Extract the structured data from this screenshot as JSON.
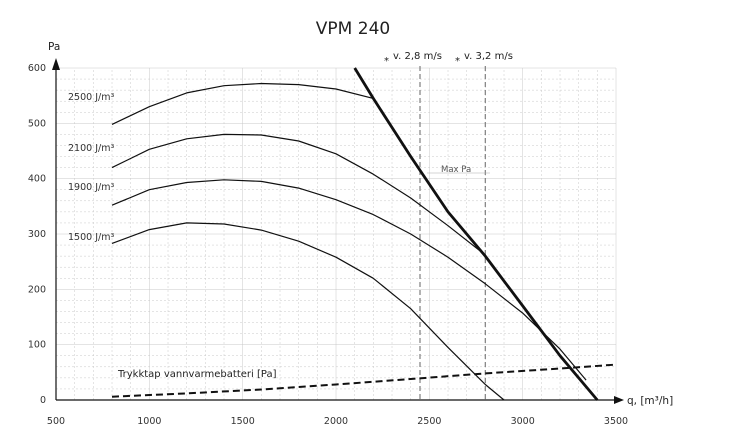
{
  "chart_data": {
    "type": "line",
    "title": "VPM 240",
    "ylabel": "Pa",
    "xlabel": "q, [m³/h]",
    "xlim": [
      500,
      3500
    ],
    "ylim": [
      0,
      600
    ],
    "x_ticks": [
      500,
      1000,
      1500,
      2000,
      2500,
      3000,
      3500
    ],
    "y_ticks": [
      0,
      100,
      200,
      300,
      400,
      500,
      600
    ],
    "grid": true,
    "series": [
      {
        "name": "2500 J/m³",
        "style": "solid",
        "x": [
          800,
          1000,
          1200,
          1400,
          1600,
          1800,
          2000,
          2200
        ],
        "y": [
          498,
          530,
          555,
          568,
          572,
          570,
          562,
          545
        ]
      },
      {
        "name": "2100 J/m³",
        "style": "solid",
        "x": [
          800,
          1000,
          1200,
          1400,
          1600,
          1800,
          2000,
          2200,
          2400,
          2600,
          2800
        ],
        "y": [
          420,
          453,
          472,
          480,
          479,
          468,
          445,
          408,
          365,
          315,
          262
        ]
      },
      {
        "name": "1900 J/m³",
        "style": "solid",
        "x": [
          800,
          1000,
          1200,
          1400,
          1600,
          1800,
          2000,
          2200,
          2400,
          2600,
          2800,
          3000,
          3200,
          3340
        ],
        "y": [
          352,
          380,
          393,
          398,
          395,
          383,
          362,
          335,
          300,
          258,
          210,
          157,
          92,
          36
        ]
      },
      {
        "name": "1500 J/m³",
        "style": "solid",
        "x": [
          800,
          1000,
          1200,
          1400,
          1600,
          1800,
          2000,
          2200,
          2400,
          2600,
          2800,
          2900
        ],
        "y": [
          283,
          308,
          320,
          318,
          307,
          287,
          258,
          220,
          165,
          95,
          28,
          0
        ]
      },
      {
        "name": "Max Pa",
        "style": "bold",
        "x": [
          2100,
          2200,
          2400,
          2600,
          2800,
          3000,
          3200,
          3400
        ],
        "y": [
          600,
          545,
          440,
          340,
          260,
          170,
          80,
          0
        ]
      },
      {
        "name": "Trykktap vannvarmebatteri [Pa]",
        "style": "dashed",
        "x": [
          800,
          1200,
          1600,
          2000,
          2400,
          2800,
          3200,
          3500
        ],
        "y": [
          6,
          12,
          19,
          28,
          38,
          48,
          57,
          64
        ]
      }
    ],
    "curve_labels": [
      "2500 J/m³",
      "2100 J/m³",
      "1900 J/m³",
      "1500 J/m³"
    ],
    "annotations": {
      "velocity_1": {
        "text": "v. 2,8 m/s",
        "x": 2450
      },
      "velocity_2": {
        "text": "v. 3,2 m/s",
        "x": 2800
      },
      "star": "*",
      "max_label": "Max Pa",
      "pressure_drop_label": "Trykktap vannvarmebatteri [Pa]"
    }
  }
}
